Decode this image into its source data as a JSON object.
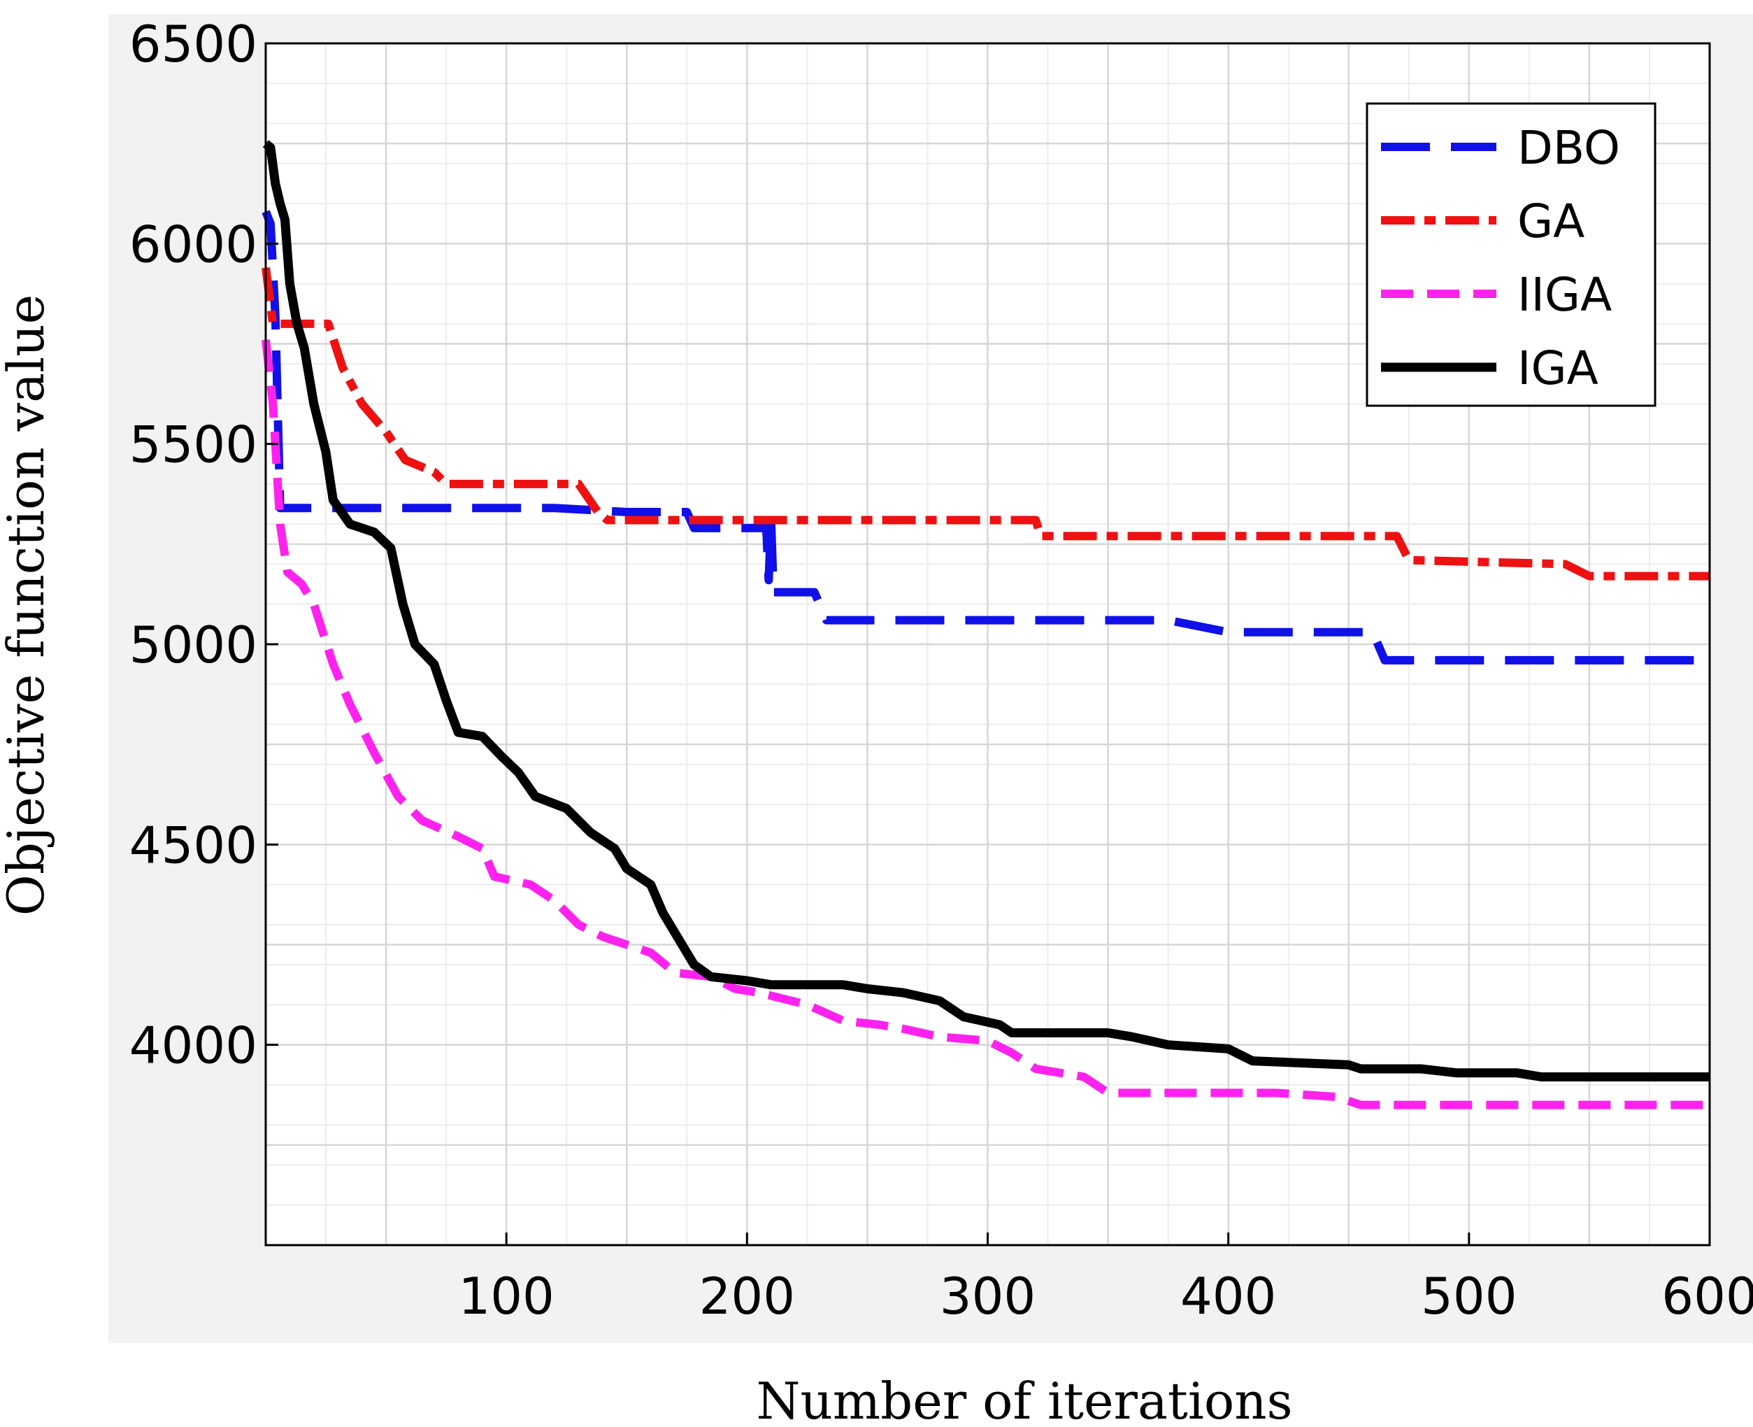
{
  "chart_data": {
    "type": "line",
    "title": "",
    "xlabel": "Number of iterations",
    "ylabel": "Objective function value",
    "xlim": [
      0,
      600
    ],
    "ylim": [
      3500,
      6500
    ],
    "xticks": [
      100,
      200,
      300,
      400,
      500,
      600
    ],
    "yticks": [
      4000,
      4500,
      5000,
      5500,
      6000,
      6500
    ],
    "grid": true,
    "grid_minor": true,
    "legend_position": "top-right",
    "series": [
      {
        "name": "DBO",
        "color": "#1010e8",
        "dash": "long-dash",
        "points": [
          [
            0,
            6080
          ],
          [
            2,
            6050
          ],
          [
            4,
            5820
          ],
          [
            6,
            5340
          ],
          [
            120,
            5340
          ],
          [
            150,
            5330
          ],
          [
            175,
            5330
          ],
          [
            178,
            5290
          ],
          [
            208,
            5290
          ],
          [
            209,
            5160
          ],
          [
            210,
            5310
          ],
          [
            211,
            5130
          ],
          [
            228,
            5130
          ],
          [
            233,
            5060
          ],
          [
            375,
            5060
          ],
          [
            400,
            5030
          ],
          [
            460,
            5030
          ],
          [
            465,
            4960
          ],
          [
            600,
            4960
          ]
        ]
      },
      {
        "name": "GA",
        "color": "#ee1111",
        "dash": "dash-dot",
        "points": [
          [
            0,
            5940
          ],
          [
            3,
            5800
          ],
          [
            26,
            5800
          ],
          [
            32,
            5690
          ],
          [
            40,
            5600
          ],
          [
            50,
            5530
          ],
          [
            58,
            5460
          ],
          [
            70,
            5430
          ],
          [
            75,
            5400
          ],
          [
            130,
            5400
          ],
          [
            138,
            5330
          ],
          [
            142,
            5310
          ],
          [
            200,
            5310
          ],
          [
            320,
            5310
          ],
          [
            322,
            5270
          ],
          [
            470,
            5270
          ],
          [
            475,
            5210
          ],
          [
            540,
            5200
          ],
          [
            550,
            5170
          ],
          [
            600,
            5170
          ]
        ]
      },
      {
        "name": "IIGA",
        "color": "#ff22ee",
        "dash": "dashed",
        "points": [
          [
            0,
            5760
          ],
          [
            3,
            5600
          ],
          [
            6,
            5300
          ],
          [
            9,
            5180
          ],
          [
            15,
            5150
          ],
          [
            20,
            5100
          ],
          [
            28,
            4950
          ],
          [
            35,
            4850
          ],
          [
            45,
            4730
          ],
          [
            55,
            4620
          ],
          [
            65,
            4560
          ],
          [
            80,
            4520
          ],
          [
            90,
            4490
          ],
          [
            95,
            4420
          ],
          [
            110,
            4400
          ],
          [
            120,
            4360
          ],
          [
            130,
            4300
          ],
          [
            140,
            4270
          ],
          [
            150,
            4250
          ],
          [
            160,
            4230
          ],
          [
            170,
            4180
          ],
          [
            185,
            4170
          ],
          [
            195,
            4140
          ],
          [
            205,
            4130
          ],
          [
            225,
            4100
          ],
          [
            240,
            4060
          ],
          [
            255,
            4050
          ],
          [
            265,
            4040
          ],
          [
            280,
            4020
          ],
          [
            300,
            4010
          ],
          [
            310,
            3980
          ],
          [
            320,
            3940
          ],
          [
            340,
            3920
          ],
          [
            350,
            3880
          ],
          [
            420,
            3880
          ],
          [
            445,
            3870
          ],
          [
            455,
            3850
          ],
          [
            600,
            3850
          ]
        ]
      },
      {
        "name": "IGA",
        "color": "#000000",
        "dash": "solid",
        "points": [
          [
            0,
            6250
          ],
          [
            2,
            6240
          ],
          [
            4,
            6150
          ],
          [
            6,
            6100
          ],
          [
            8,
            6060
          ],
          [
            10,
            5900
          ],
          [
            13,
            5800
          ],
          [
            16,
            5740
          ],
          [
            20,
            5600
          ],
          [
            25,
            5480
          ],
          [
            28,
            5360
          ],
          [
            35,
            5300
          ],
          [
            45,
            5280
          ],
          [
            52,
            5240
          ],
          [
            57,
            5100
          ],
          [
            62,
            5000
          ],
          [
            70,
            4950
          ],
          [
            75,
            4860
          ],
          [
            80,
            4780
          ],
          [
            90,
            4770
          ],
          [
            98,
            4720
          ],
          [
            105,
            4680
          ],
          [
            112,
            4620
          ],
          [
            125,
            4590
          ],
          [
            135,
            4530
          ],
          [
            145,
            4490
          ],
          [
            150,
            4440
          ],
          [
            160,
            4400
          ],
          [
            165,
            4330
          ],
          [
            172,
            4260
          ],
          [
            178,
            4200
          ],
          [
            185,
            4170
          ],
          [
            200,
            4160
          ],
          [
            210,
            4150
          ],
          [
            240,
            4150
          ],
          [
            250,
            4140
          ],
          [
            265,
            4130
          ],
          [
            280,
            4110
          ],
          [
            290,
            4070
          ],
          [
            305,
            4050
          ],
          [
            310,
            4030
          ],
          [
            350,
            4030
          ],
          [
            360,
            4020
          ],
          [
            375,
            4000
          ],
          [
            400,
            3990
          ],
          [
            410,
            3960
          ],
          [
            450,
            3950
          ],
          [
            455,
            3940
          ],
          [
            480,
            3940
          ],
          [
            495,
            3930
          ],
          [
            520,
            3930
          ],
          [
            530,
            3920
          ],
          [
            600,
            3920
          ]
        ]
      }
    ]
  }
}
